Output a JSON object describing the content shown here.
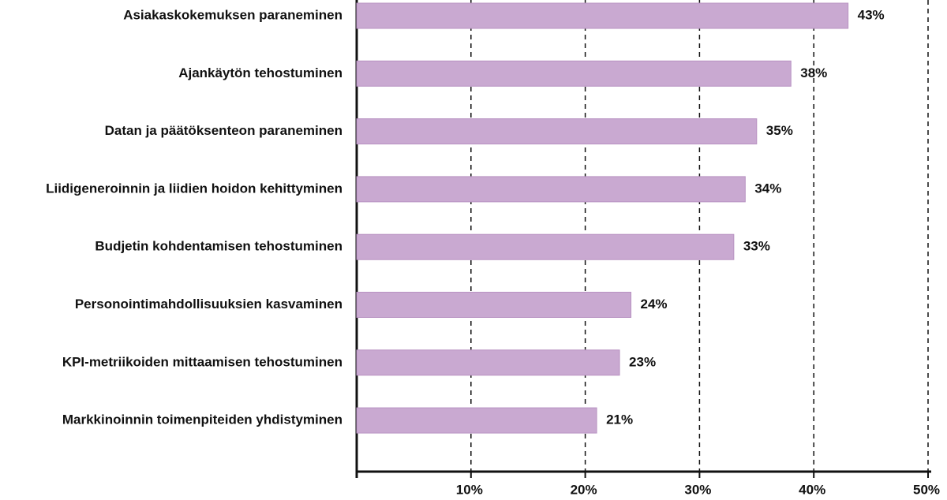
{
  "chart_data": {
    "type": "hbar",
    "categories": [
      "Asiakaskokemuksen paraneminen",
      "Ajankäytön tehostuminen",
      "Datan ja päätöksenteon paraneminen",
      "Liidigeneroinnin ja liidien hoidon kehittyminen",
      "Budjetin kohdentamisen tehostuminen",
      "Personointimahdollisuuksien kasvaminen",
      "KPI-metriikoiden mittaamisen tehostuminen",
      "Markkinoinnin toimenpiteiden yhdistyminen"
    ],
    "values": [
      43,
      38,
      35,
      34,
      33,
      24,
      23,
      21
    ],
    "value_labels": [
      "43%",
      "38%",
      "35%",
      "34%",
      "33%",
      "24%",
      "23%",
      "21%"
    ],
    "color": "#c9a9d1",
    "xlim": [
      0,
      50
    ],
    "xticks": [
      {
        "value": 10,
        "label": "10%"
      },
      {
        "value": 20,
        "label": "20%"
      },
      {
        "value": 30,
        "label": "30%"
      },
      {
        "value": 40,
        "label": "40%"
      },
      {
        "value": 50,
        "label": "50%"
      }
    ],
    "grid": true
  }
}
